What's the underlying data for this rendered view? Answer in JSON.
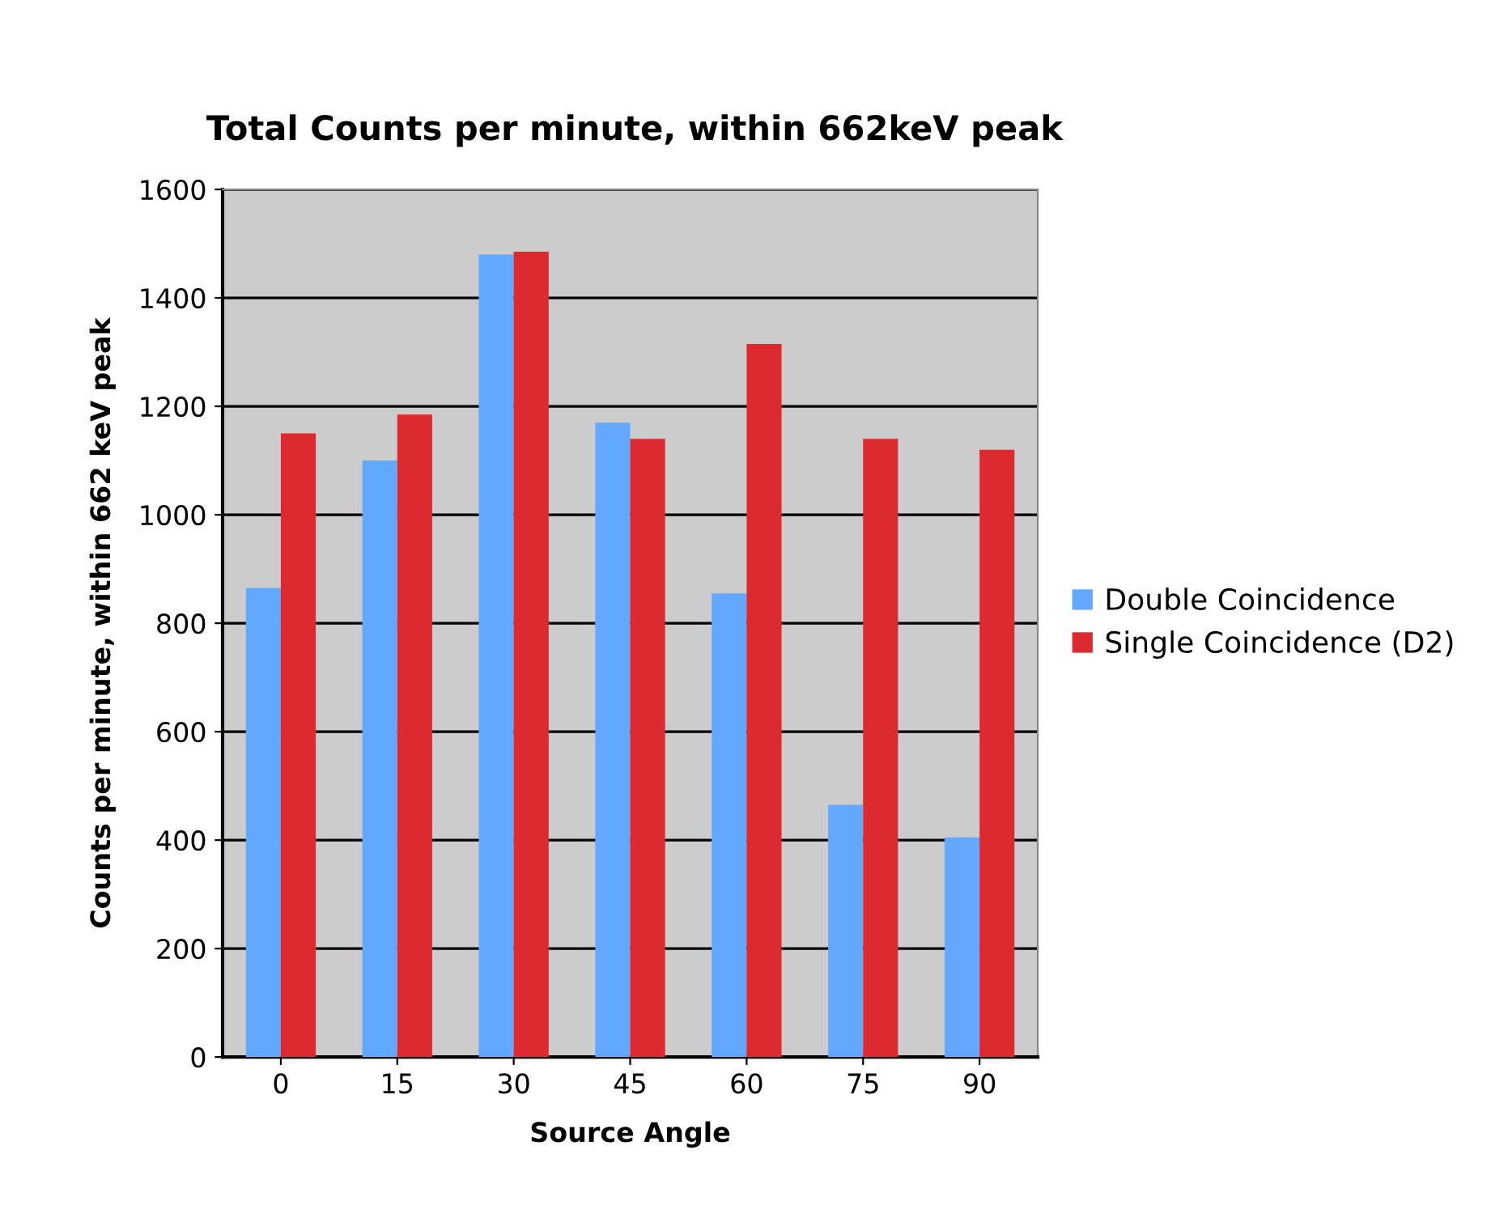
{
  "chart_data": {
    "type": "bar",
    "title": "Total Counts per minute, within 662keV peak",
    "xlabel": "Source Angle",
    "ylabel": "Counts per minute, within 662 keV peak",
    "categories": [
      "0",
      "15",
      "30",
      "45",
      "60",
      "75",
      "90"
    ],
    "series": [
      {
        "name": "Double Coincidence",
        "color": "#62a8ff",
        "values": [
          865,
          1100,
          1480,
          1170,
          855,
          465,
          405
        ]
      },
      {
        "name": "Single Coincidence (D2)",
        "color": "#dd2a30",
        "values": [
          1150,
          1185,
          1485,
          1140,
          1315,
          1140,
          1120
        ]
      }
    ],
    "ylim": [
      0,
      1600
    ],
    "yticks": [
      0,
      200,
      400,
      600,
      800,
      1000,
      1200,
      1400,
      1600
    ],
    "grid": "y",
    "legend": "right"
  }
}
